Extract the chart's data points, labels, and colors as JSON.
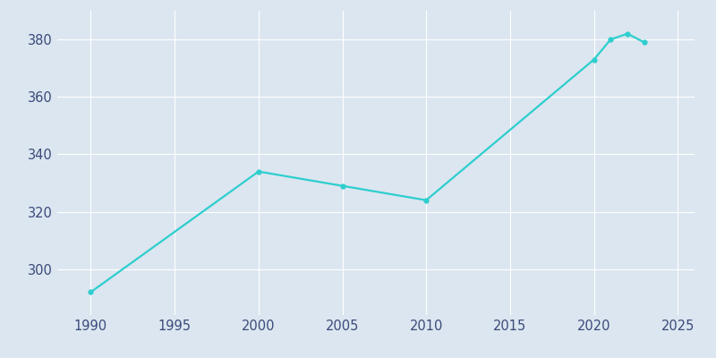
{
  "years": [
    1990,
    2000,
    2005,
    2010,
    2020,
    2021,
    2022,
    2023
  ],
  "population": [
    292,
    334,
    329,
    324,
    373,
    380,
    382,
    379
  ],
  "line_color": "#2ECECE",
  "bg_color": "#DCE6F0",
  "plot_bg_color": "#DCE6F0",
  "grid_color": "#FFFFFF",
  "tick_color": "#3A4A7A",
  "xlim": [
    1988,
    2026
  ],
  "ylim": [
    284,
    390
  ],
  "xticks": [
    1990,
    1995,
    2000,
    2005,
    2010,
    2015,
    2020,
    2025
  ],
  "yticks": [
    300,
    320,
    340,
    360,
    380
  ],
  "marker": "o",
  "marker_size": 3.5,
  "line_width": 1.6
}
